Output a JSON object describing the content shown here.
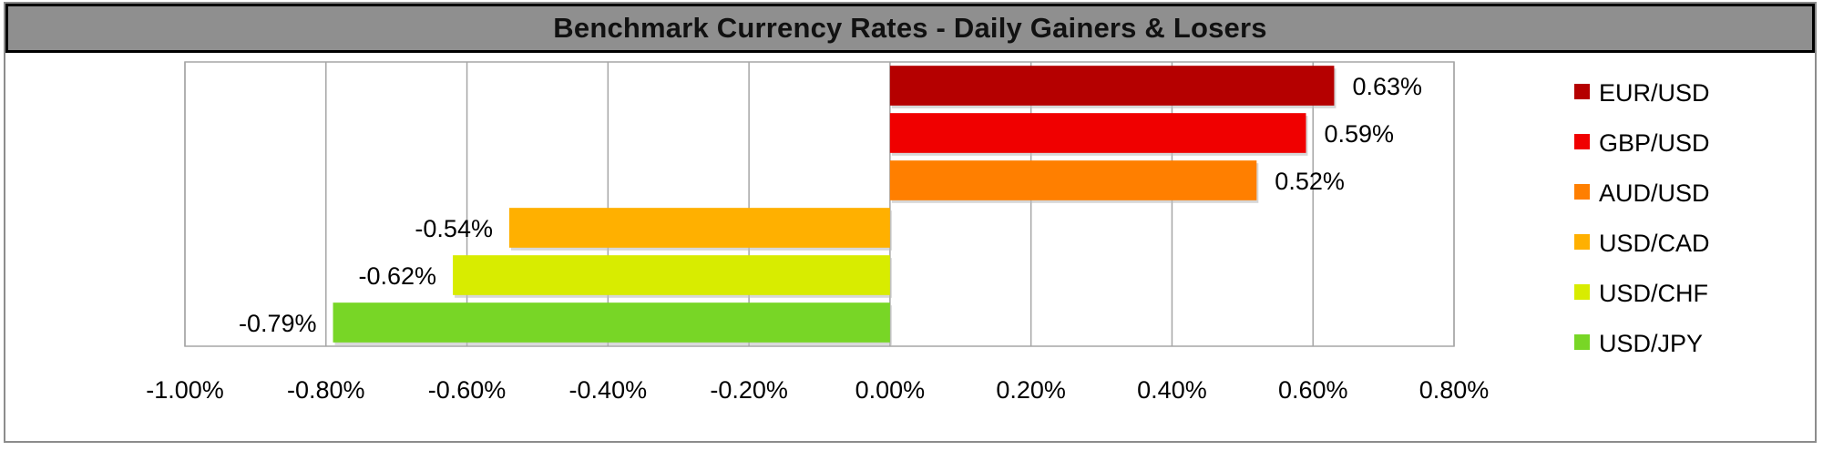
{
  "chart_data": {
    "type": "bar",
    "orientation": "horizontal",
    "title": "Benchmark Currency Rates - Daily Gainers & Losers",
    "xlim": [
      -1.0,
      0.8
    ],
    "x_tick_step": 0.2,
    "x_tick_labels": [
      "-1.00%",
      "-0.80%",
      "-0.60%",
      "-0.40%",
      "-0.20%",
      "0.00%",
      "0.20%",
      "0.40%",
      "0.60%",
      "0.80%"
    ],
    "grid": "vertical",
    "legend_position": "right",
    "series": [
      {
        "name": "EUR/USD",
        "value": 0.63,
        "label": "0.63%",
        "color": "#b50000"
      },
      {
        "name": "GBP/USD",
        "value": 0.59,
        "label": "0.59%",
        "color": "#f00000"
      },
      {
        "name": "AUD/USD",
        "value": 0.52,
        "label": "0.52%",
        "color": "#ff7f00"
      },
      {
        "name": "USD/CAD",
        "value": -0.54,
        "label": "-0.54%",
        "color": "#ffb000"
      },
      {
        "name": "USD/CHF",
        "value": -0.62,
        "label": "-0.62%",
        "color": "#d8ec00"
      },
      {
        "name": "USD/JPY",
        "value": -0.79,
        "label": "-0.79%",
        "color": "#78d626"
      }
    ]
  }
}
